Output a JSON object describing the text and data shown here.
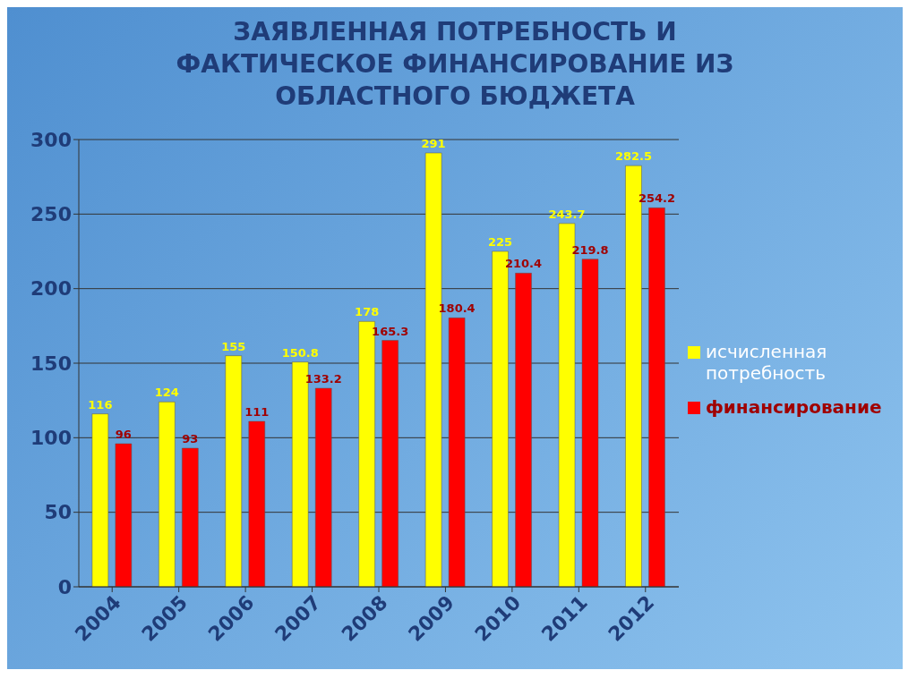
{
  "chart_data": {
    "type": "bar",
    "title": "ЗАЯВЛЕННАЯ ПОТРЕБНОСТЬ И ФАКТИЧЕСКОЕ ФИНАНСИРОВАНИЕ ИЗ ОБЛАСТНОГО БЮДЖЕТА",
    "categories": [
      "2004",
      "2005",
      "2006",
      "2007",
      "2008",
      "2009",
      "2010",
      "2011",
      "2012"
    ],
    "series": [
      {
        "name": "исчисленная потребность",
        "color": "#ffff00",
        "values": [
          116,
          124,
          155,
          150.8,
          178,
          291,
          225,
          243.7,
          282.5
        ]
      },
      {
        "name": "финансирование",
        "color": "#ff0000",
        "values": [
          96,
          93,
          111,
          133.2,
          165.3,
          180.4,
          210.4,
          219.8,
          254.2
        ]
      }
    ],
    "ylim": [
      0,
      300
    ],
    "yticks": [
      0,
      50,
      100,
      150,
      200,
      250,
      300
    ],
    "grid": "y",
    "legend": "right",
    "data_labels": true
  }
}
